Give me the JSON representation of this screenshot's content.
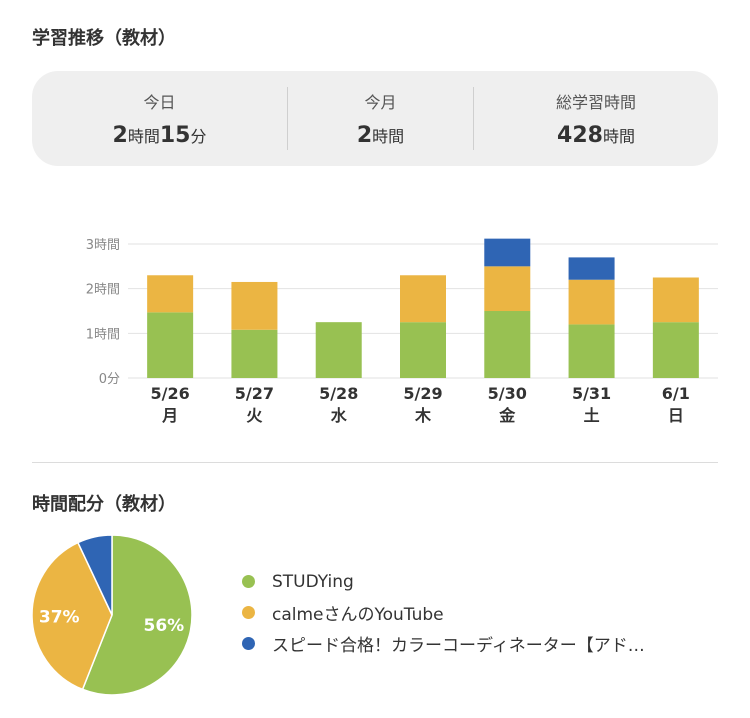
{
  "sections": {
    "trend_title": "学習推移（教材）",
    "alloc_title": "時間配分（教材）"
  },
  "summary": {
    "today": {
      "label": "今日",
      "h": "2",
      "h_unit": "時間",
      "m": "15",
      "m_unit": "分"
    },
    "month": {
      "label": "今月",
      "value": "2",
      "unit": "時間"
    },
    "total": {
      "label": "総学習時間",
      "value": "428",
      "unit": "時間"
    }
  },
  "colors": {
    "studying": "#98c152",
    "youtube": "#ebb543",
    "speed": "#2f65b4",
    "grid": "#e2e2e2",
    "axis_text": "#888888"
  },
  "chart_data": [
    {
      "type": "bar",
      "stacked": true,
      "categories": [
        "5/26",
        "5/27",
        "5/28",
        "5/29",
        "5/30",
        "5/31",
        "6/1"
      ],
      "weekdays": [
        "月",
        "火",
        "水",
        "木",
        "金",
        "土",
        "日"
      ],
      "series": [
        {
          "name": "STUDYing",
          "values": [
            1.47,
            1.08,
            1.25,
            1.25,
            1.5,
            1.2,
            1.25
          ]
        },
        {
          "name": "calmeさんのYouTube",
          "values": [
            0.83,
            1.07,
            0,
            1.05,
            1.0,
            1.0,
            1.0
          ]
        },
        {
          "name": "スピード合格！カラーコーディネーター【アド…",
          "values": [
            0,
            0,
            0,
            0,
            0.62,
            0.5,
            0
          ]
        }
      ],
      "ylim": [
        0,
        3
      ],
      "yticks": [
        0,
        1,
        2,
        3
      ],
      "ytick_labels": [
        "0分",
        "1時間",
        "2時間",
        "3時間"
      ],
      "grid": true,
      "legend": "none"
    },
    {
      "type": "pie",
      "slices": [
        {
          "name": "STUDYing",
          "value": 56,
          "label": "56%"
        },
        {
          "name": "calmeさんのYouTube",
          "value": 37,
          "label": "37%"
        },
        {
          "name": "スピード合格！カラーコーディネーター【アド…",
          "value": 7,
          "label": ""
        }
      ],
      "legend": "right"
    }
  ]
}
